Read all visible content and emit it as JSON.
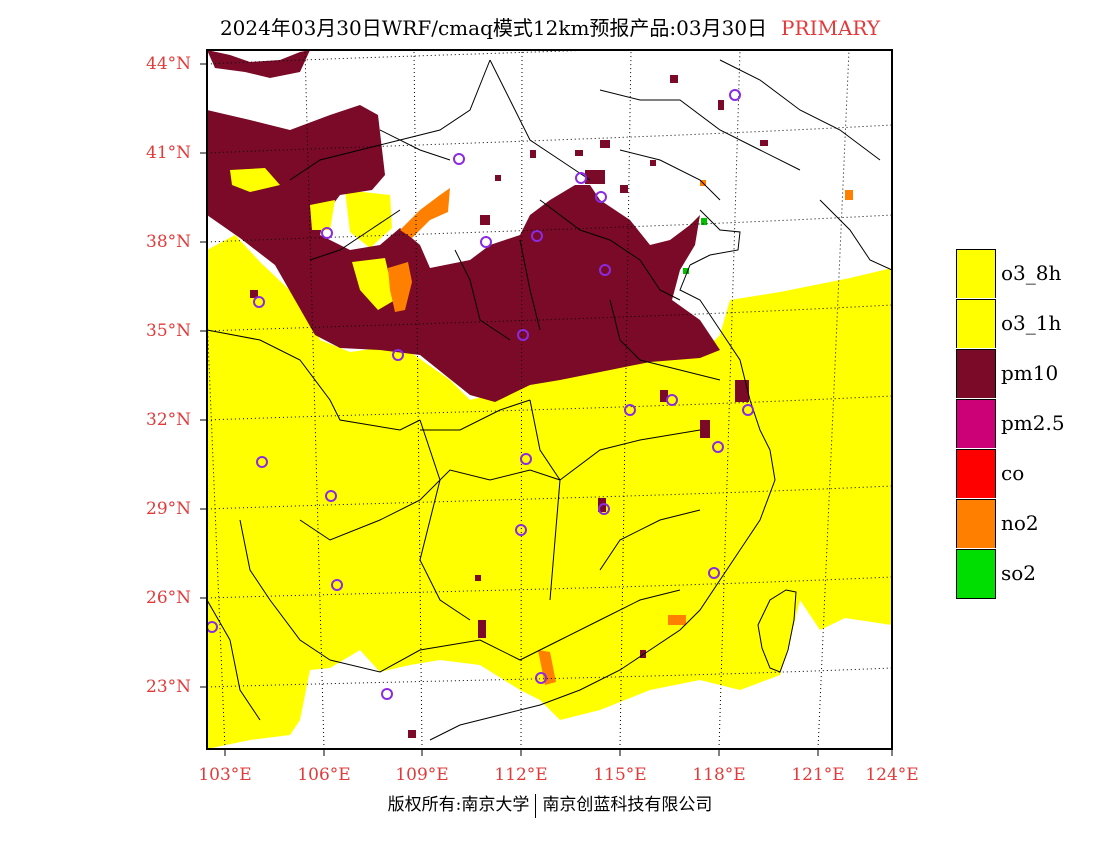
{
  "title": "2024年03月30日WRF/cmaq模式12km预报产品:03月30日",
  "title_tag": "PRIMARY",
  "map": {
    "lat_ticks": [
      "44°N",
      "41°N",
      "38°N",
      "35°N",
      "32°N",
      "29°N",
      "26°N",
      "23°N"
    ],
    "lon_ticks": [
      "103°E",
      "106°E",
      "109°E",
      "112°E",
      "115°E",
      "118°E",
      "121°E",
      "124°E"
    ],
    "colors": {
      "o3": "#ffff00",
      "pm10": "#7a0a28",
      "no2": "#ff8000",
      "so2": "#00c000",
      "city": "#8a2be2"
    }
  },
  "legend": [
    {
      "label": "o3_8h",
      "color": "#ffff00"
    },
    {
      "label": "o3_1h",
      "color": "#ffff00"
    },
    {
      "label": "pm10",
      "color": "#7a0a28"
    },
    {
      "label": "pm2.5",
      "color": "#cc0077"
    },
    {
      "label": "co",
      "color": "#ff0000"
    },
    {
      "label": "no2",
      "color": "#ff8000"
    },
    {
      "label": "so2",
      "color": "#00dd00"
    }
  ],
  "footer": {
    "left": "版权所有:南京大学",
    "right": "南京创蓝科技有限公司"
  }
}
